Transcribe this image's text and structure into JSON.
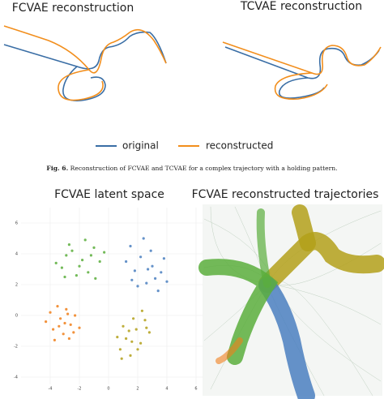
{
  "top_panels": [
    {
      "title": "FCVAE reconstruction"
    },
    {
      "title": "TCVAE reconstruction"
    }
  ],
  "legend": {
    "items": [
      {
        "label": "original",
        "color": "#3a6ea5"
      },
      {
        "label": "reconstructed",
        "color": "#f28e1c"
      }
    ]
  },
  "caption": {
    "label": "Fig. 6.",
    "text": "Reconstruction of FCVAE and TCVAE for a complex trajectory with a holding pattern."
  },
  "chart_data": {
    "type": "scatter",
    "title": "FCVAE latent space",
    "xlim": [
      -6.5,
      6.5
    ],
    "ylim": [
      -5,
      7
    ],
    "xticks": [
      -4,
      -2,
      0,
      2,
      4,
      6
    ],
    "yticks": [
      -4,
      -2,
      0,
      2,
      4,
      6
    ],
    "grid": true,
    "series": [
      {
        "color": "#5aae3c",
        "x": [
          -3.2,
          -2.5,
          -1.8,
          -1.0,
          -2.9,
          -1.4,
          -0.6,
          -2.2,
          -3.6,
          -1.6,
          -0.9,
          -2.7,
          -0.3,
          -2.0,
          -3.0,
          -1.2
        ],
        "y": [
          3.1,
          4.2,
          3.6,
          4.4,
          3.9,
          2.8,
          3.5,
          2.6,
          3.4,
          4.9,
          2.4,
          4.6,
          4.1,
          3.2,
          2.5,
          3.9
        ]
      },
      {
        "color": "#4a7fbf",
        "x": [
          1.5,
          2.2,
          3.0,
          2.6,
          3.6,
          1.8,
          2.9,
          3.4,
          2.0,
          1.2,
          3.8,
          2.4,
          3.2,
          1.6,
          2.7,
          4.0
        ],
        "y": [
          4.5,
          3.8,
          3.2,
          2.1,
          2.8,
          2.9,
          4.2,
          1.6,
          1.9,
          3.5,
          3.7,
          5.0,
          2.4,
          2.3,
          3.0,
          2.2
        ]
      },
      {
        "color": "#f07f1a",
        "x": [
          -4.0,
          -3.3,
          -2.6,
          -3.8,
          -2.9,
          -3.1,
          -2.3,
          -4.3,
          -2.7,
          -3.5,
          -2.0,
          -3.0,
          -3.7,
          -2.4,
          -3.4,
          -2.8
        ],
        "y": [
          0.2,
          -0.2,
          -0.6,
          -0.9,
          0.4,
          -1.2,
          0.0,
          -0.4,
          -1.5,
          0.6,
          -0.8,
          -0.5,
          -1.6,
          -1.1,
          -0.7,
          0.1
        ]
      },
      {
        "color": "#b3a01a",
        "x": [
          0.8,
          1.2,
          1.9,
          2.5,
          1.5,
          2.2,
          1.0,
          2.8,
          0.6,
          1.7,
          2.3,
          1.4,
          2.0,
          0.9,
          2.6,
          1.6
        ],
        "y": [
          -2.2,
          -1.5,
          -0.9,
          -0.3,
          -2.6,
          -1.8,
          -0.7,
          -1.1,
          -1.4,
          -0.2,
          0.3,
          -1.0,
          -2.2,
          -2.8,
          -0.8,
          -1.7
        ]
      }
    ]
  },
  "right_panel": {
    "title": "FCVAE reconstructed trajectories"
  }
}
